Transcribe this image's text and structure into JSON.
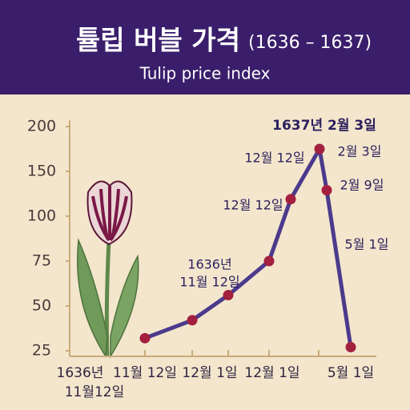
{
  "chart_data": {
    "type": "line",
    "title": "튤립 버블 가격",
    "title_years": "(1636 – 1637)",
    "subtitle": "Tulip price index",
    "values": [
      32,
      42,
      56,
      75,
      119,
      175,
      129,
      27
    ],
    "color": "#4b3a8c",
    "marker_color": "#a3203f",
    "yticks": [
      25,
      50,
      75,
      100,
      150,
      200
    ],
    "ylim": [
      25,
      200
    ],
    "x_labels": [
      "1636년",
      "11월12일",
      "11월 12일",
      "12월 1일",
      "12월 1일",
      "5월 1일"
    ],
    "annotations": [
      "1637년 2월 3일",
      "12월 12일",
      "2월 3일",
      "12월 12일",
      "2월 9일",
      "1636년",
      "11월 12일",
      "5월 1일"
    ]
  }
}
